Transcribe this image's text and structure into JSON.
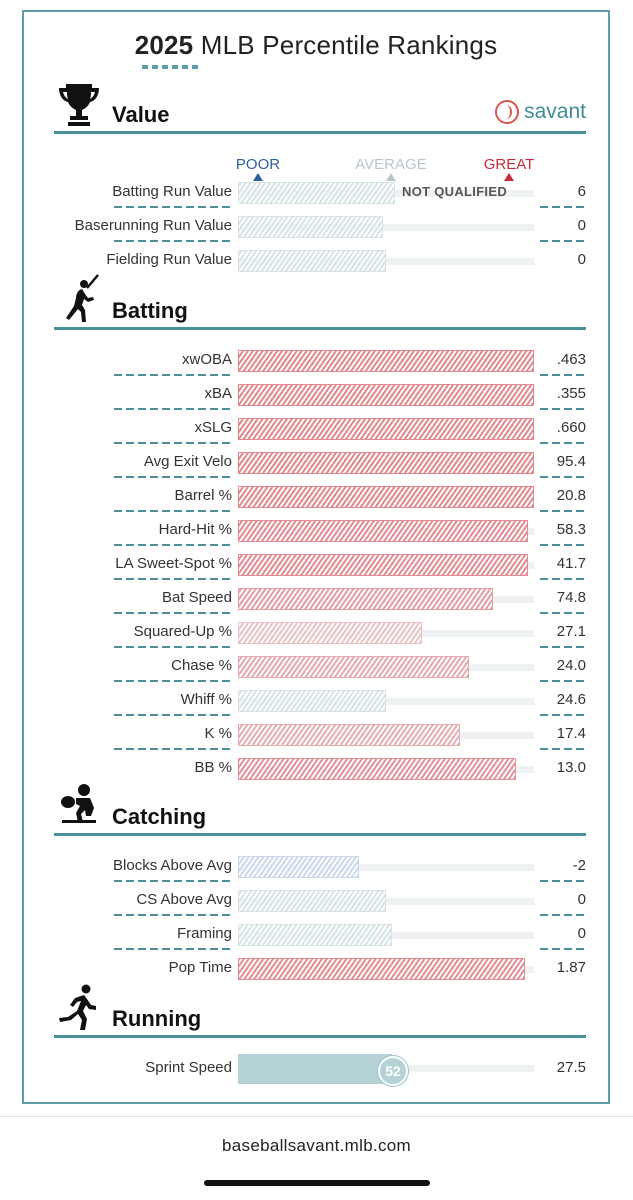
{
  "title": {
    "year": "2025",
    "rest": "MLB Percentile Rankings"
  },
  "brand": "savant",
  "markers": {
    "poor": "POOR",
    "average": "AVERAGE",
    "great": "GREAT"
  },
  "colors": {
    "accent": "#4a8f99",
    "great": "#e89a9e",
    "poor": "#c9d8ea",
    "neutral": "#d7e4e6",
    "sprint": "#b5d3d6"
  },
  "sections": [
    {
      "name": "Value",
      "icon": "trophy-icon",
      "rows": [
        {
          "label": "Batting Run Value",
          "value": "6",
          "percentile": 53,
          "note": "NOT QUALIFIED"
        },
        {
          "label": "Baserunning Run Value",
          "value": "0",
          "percentile": 49
        },
        {
          "label": "Fielding Run Value",
          "value": "0",
          "percentile": 50
        }
      ]
    },
    {
      "name": "Batting",
      "icon": "batter-icon",
      "rows": [
        {
          "label": "xwOBA",
          "value": ".463",
          "percentile": 100
        },
        {
          "label": "xBA",
          "value": ".355",
          "percentile": 100
        },
        {
          "label": "xSLG",
          "value": ".660",
          "percentile": 100
        },
        {
          "label": "Avg Exit Velo",
          "value": "95.4",
          "percentile": 100
        },
        {
          "label": "Barrel %",
          "value": "20.8",
          "percentile": 100
        },
        {
          "label": "Hard-Hit %",
          "value": "58.3",
          "percentile": 98
        },
        {
          "label": "LA Sweet-Spot %",
          "value": "41.7",
          "percentile": 98
        },
        {
          "label": "Bat Speed",
          "value": "74.8",
          "percentile": 86
        },
        {
          "label": "Squared-Up %",
          "value": "27.1",
          "percentile": 62
        },
        {
          "label": "Chase %",
          "value": "24.0",
          "percentile": 78
        },
        {
          "label": "Whiff %",
          "value": "24.6",
          "percentile": 50
        },
        {
          "label": "K %",
          "value": "17.4",
          "percentile": 75
        },
        {
          "label": "BB %",
          "value": "13.0",
          "percentile": 94
        }
      ]
    },
    {
      "name": "Catching",
      "icon": "catcher-icon",
      "rows": [
        {
          "label": "Blocks Above Avg",
          "value": "-2",
          "percentile": 41
        },
        {
          "label": "CS Above Avg",
          "value": "0",
          "percentile": 50
        },
        {
          "label": "Framing",
          "value": "0",
          "percentile": 52
        },
        {
          "label": "Pop Time",
          "value": "1.87",
          "percentile": 97
        }
      ]
    },
    {
      "name": "Running",
      "icon": "runner-icon",
      "rows": [
        {
          "label": "Sprint Speed",
          "value": "27.5",
          "percentile": 52,
          "badge": "52"
        }
      ]
    }
  ],
  "footer": "baseballsavant.mlb.com"
}
